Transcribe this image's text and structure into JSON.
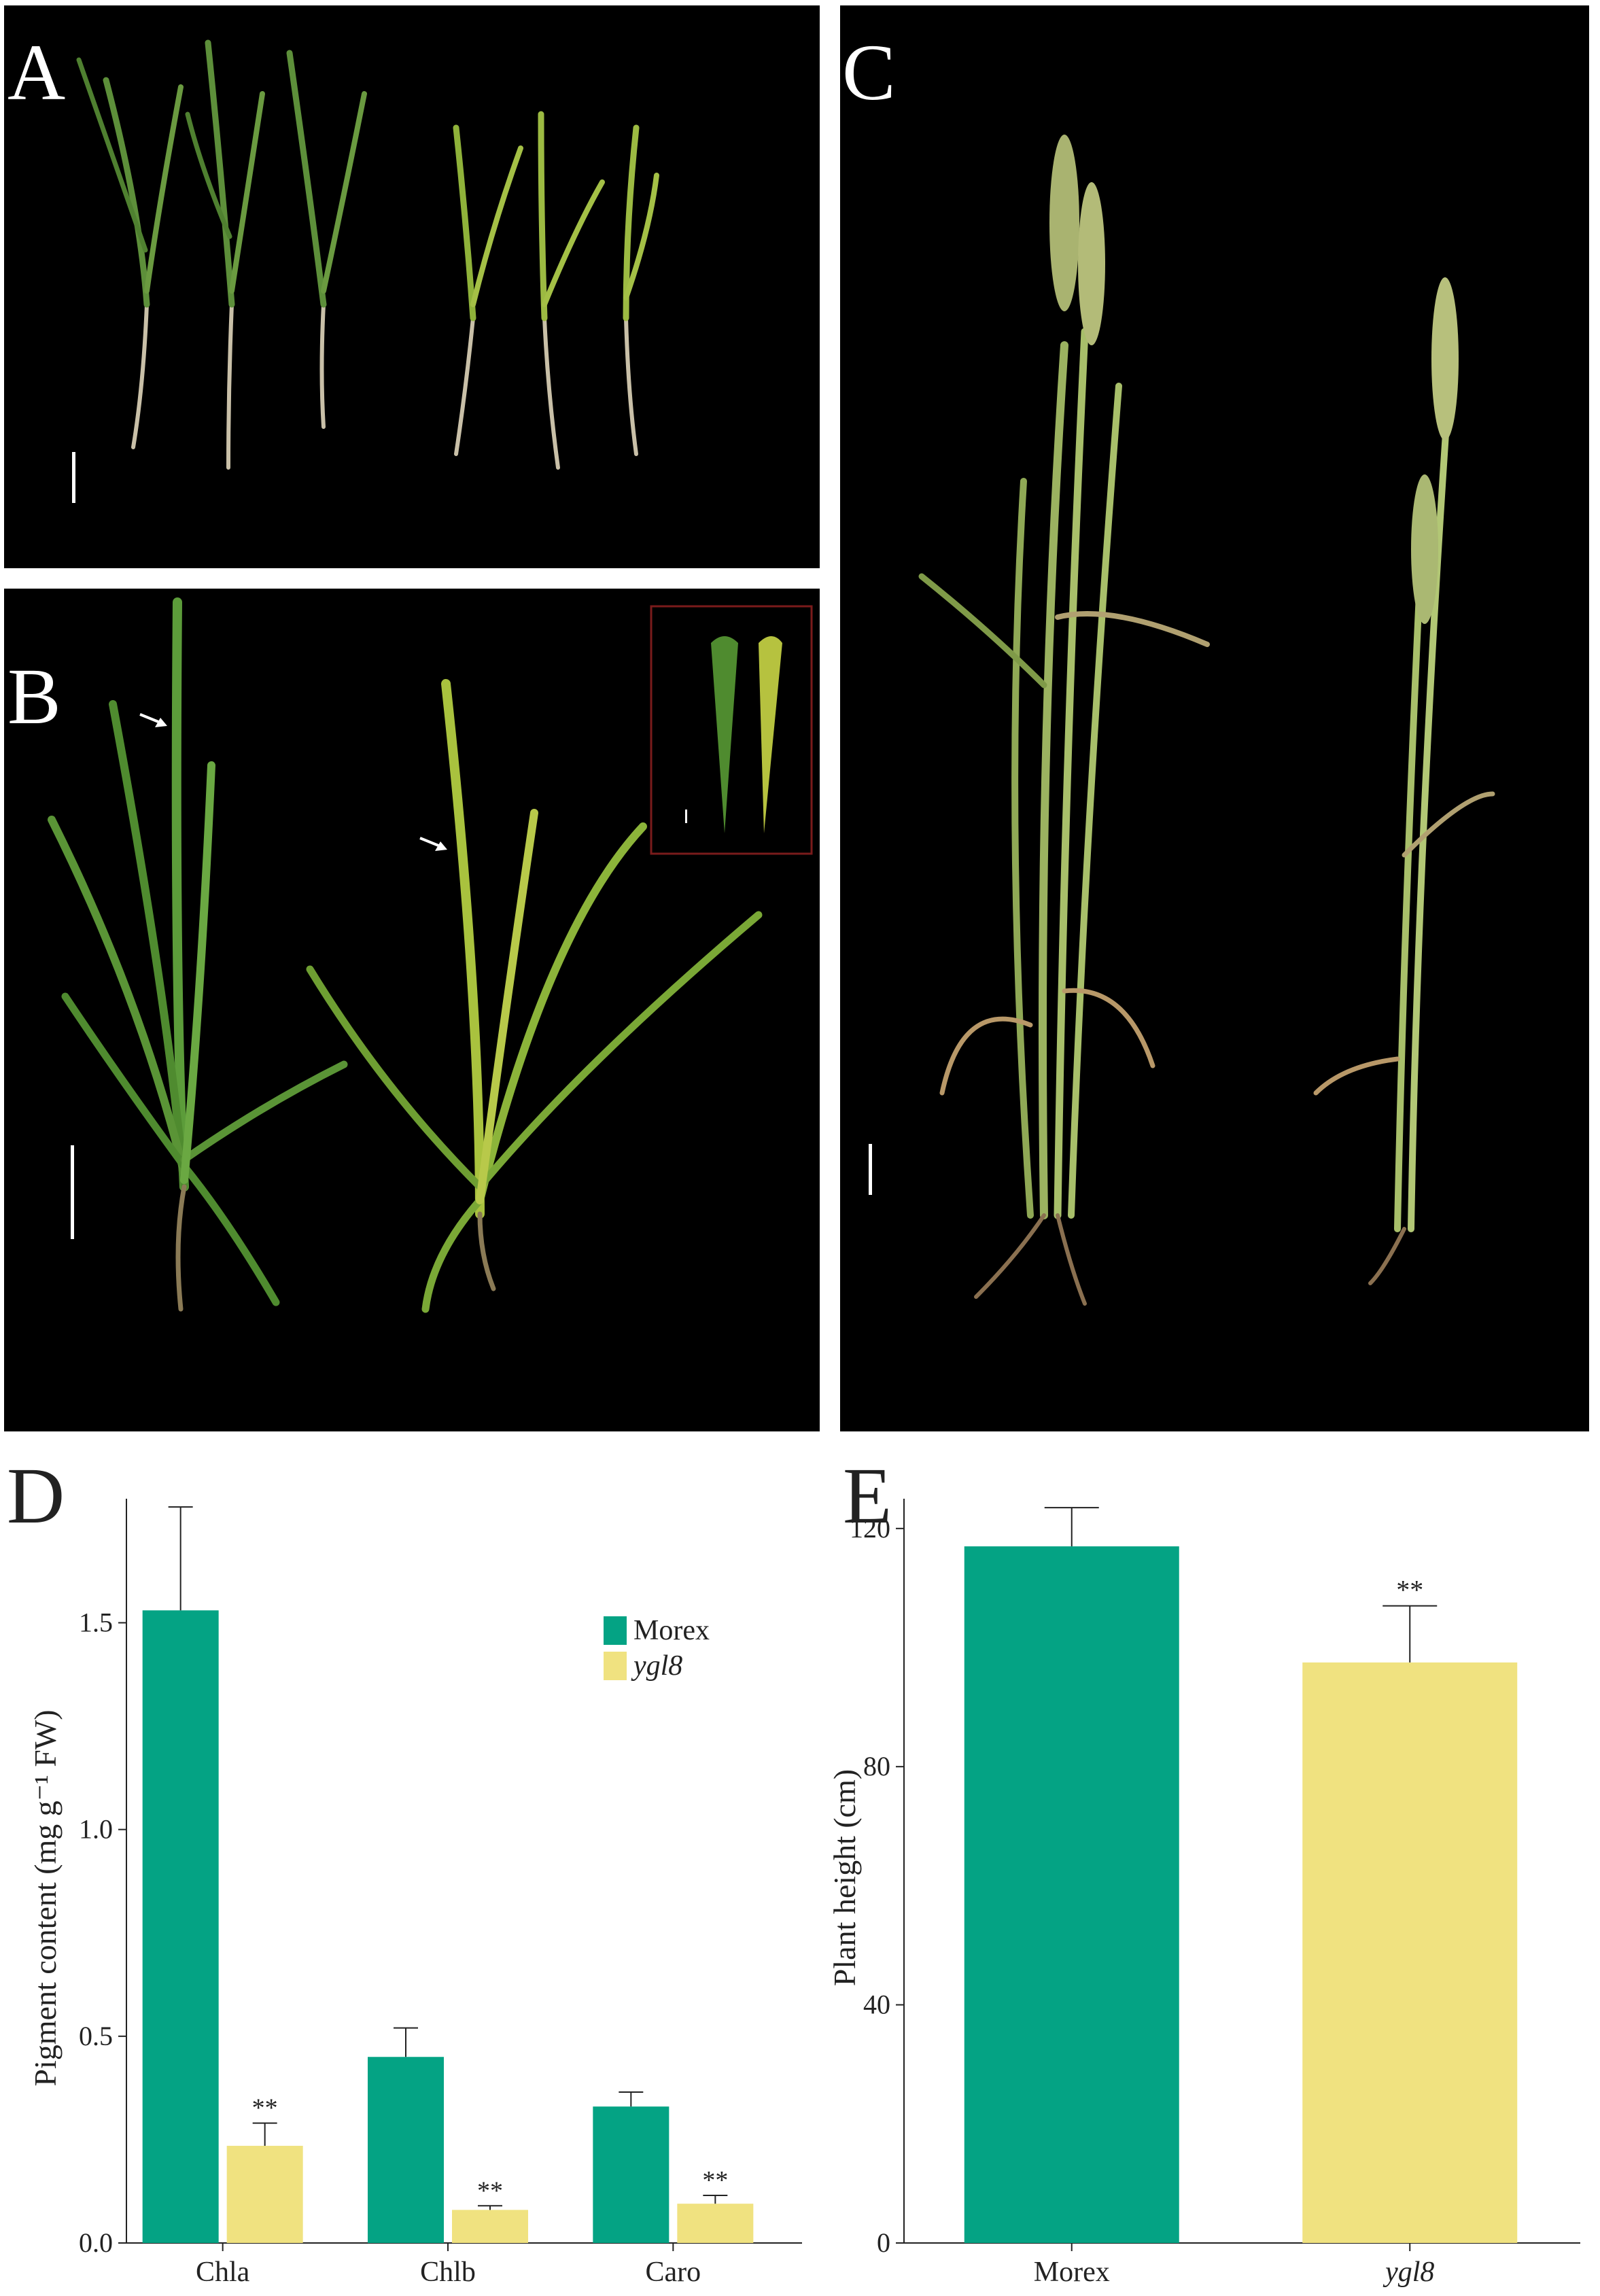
{
  "panels": {
    "A": {
      "letter": "A"
    },
    "B": {
      "letter": "B"
    },
    "C": {
      "letter": "C"
    },
    "D": {
      "letter": "D"
    },
    "E": {
      "letter": "E"
    }
  },
  "colors": {
    "morex": "#04a384",
    "ygl8": "#f0e280",
    "photo_bg": "#000000"
  },
  "chart_data": [
    {
      "panel": "D",
      "type": "bar",
      "categories": [
        "Chla",
        "Chlb",
        "Caro"
      ],
      "ylabel": "Pigment content (mg g⁻¹ FW)",
      "ylim": [
        0,
        1.8
      ],
      "yticks": [
        "0.0",
        "0.5",
        "1.0",
        "1.5"
      ],
      "legend_position": "top-right",
      "series": [
        {
          "name": "Morex",
          "color": "#04a384",
          "values": [
            1.53,
            0.45,
            0.33
          ],
          "errors": [
            0.25,
            0.07,
            0.035
          ]
        },
        {
          "name": "ygl8",
          "color": "#f0e280",
          "values": [
            0.235,
            0.08,
            0.095
          ],
          "errors": [
            0.055,
            0.01,
            0.02
          ]
        }
      ],
      "significance": [
        "**",
        "**",
        "**"
      ]
    },
    {
      "panel": "E",
      "type": "bar",
      "categories": [
        "Morex",
        "ygl8"
      ],
      "ylabel": "Plant height (cm)",
      "ylim": [
        0,
        125
      ],
      "yticks": [
        "0",
        "40",
        "80",
        "120"
      ],
      "values": [
        117,
        97.5
      ],
      "errors": [
        6.5,
        9.5
      ],
      "colors": [
        "#04a384",
        "#f0e280"
      ],
      "significance": [
        "",
        "**"
      ]
    }
  ]
}
